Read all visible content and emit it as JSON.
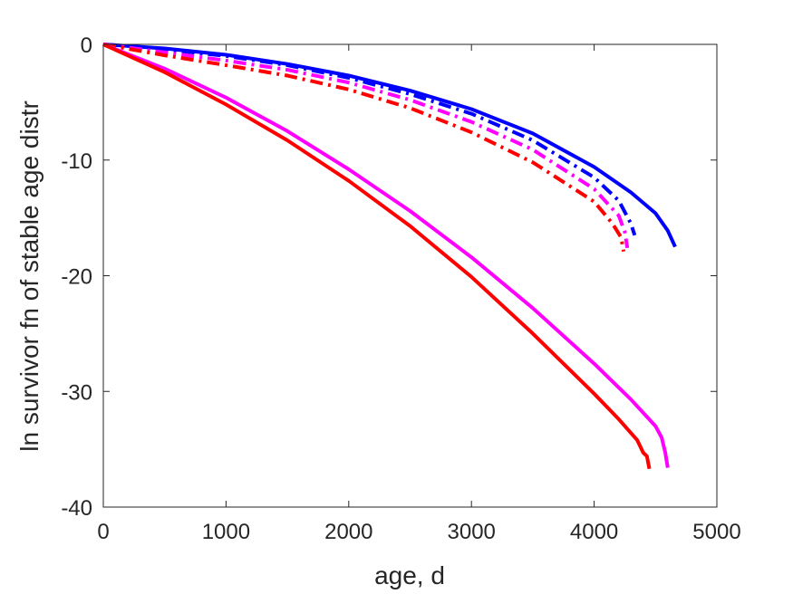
{
  "chart_data": {
    "type": "line",
    "title": "",
    "xlabel": "age, d",
    "ylabel": "ln survivor fn of stable age distr",
    "xlim": [
      0,
      5000
    ],
    "ylim": [
      -40,
      0
    ],
    "xticks": [
      0,
      1000,
      2000,
      3000,
      4000,
      5000
    ],
    "xtick_labels": [
      "0",
      "1000",
      "2000",
      "3000",
      "4000",
      "5000"
    ],
    "yticks": [
      0,
      -10,
      -20,
      -30,
      -40
    ],
    "ytick_labels": [
      "0",
      "-10",
      "-20",
      "-30",
      "-40"
    ],
    "grid": false,
    "series": [
      {
        "color": "#0000ff",
        "style": "solid",
        "x": [
          0,
          500,
          1000,
          1500,
          2000,
          2500,
          3000,
          3500,
          4000,
          4300,
          4500,
          4600,
          4660
        ],
        "y": [
          0,
          -0.35,
          -0.9,
          -1.7,
          -2.7,
          -4.0,
          -5.6,
          -7.7,
          -10.6,
          -12.8,
          -14.6,
          -16.1,
          -17.5
        ]
      },
      {
        "color": "#0000ff",
        "style": "dashdot",
        "x": [
          0,
          500,
          1000,
          1500,
          2000,
          2500,
          3000,
          3500,
          4000,
          4200,
          4300,
          4330
        ],
        "y": [
          0,
          -0.45,
          -1.0,
          -1.8,
          -2.9,
          -4.3,
          -6.0,
          -8.3,
          -11.5,
          -13.5,
          -15.5,
          -16.5
        ]
      },
      {
        "color": "#ff00ff",
        "style": "dashdot",
        "x": [
          0,
          500,
          1000,
          1500,
          2000,
          2500,
          3000,
          3500,
          4000,
          4200,
          4250,
          4270
        ],
        "y": [
          0,
          -0.7,
          -1.4,
          -2.2,
          -3.3,
          -4.8,
          -6.7,
          -9.1,
          -12.5,
          -14.8,
          -16.2,
          -17.6
        ]
      },
      {
        "color": "#ff0000",
        "style": "dashdot",
        "x": [
          0,
          500,
          1000,
          1500,
          2000,
          2500,
          3000,
          3500,
          4000,
          4150,
          4220,
          4240
        ],
        "y": [
          0,
          -0.95,
          -1.8,
          -2.7,
          -3.9,
          -5.5,
          -7.6,
          -10.2,
          -13.6,
          -15.5,
          -16.7,
          -17.9
        ]
      },
      {
        "color": "#ff00ff",
        "style": "solid",
        "x": [
          0,
          500,
          1000,
          1500,
          2000,
          2500,
          3000,
          3500,
          4000,
          4300,
          4500,
          4550,
          4580,
          4600
        ],
        "y": [
          0,
          -2.1,
          -4.6,
          -7.5,
          -10.8,
          -14.4,
          -18.4,
          -22.8,
          -27.6,
          -30.7,
          -33.0,
          -34.0,
          -35.3,
          -36.6
        ]
      },
      {
        "color": "#ff0000",
        "style": "solid",
        "x": [
          0,
          500,
          1000,
          1500,
          2000,
          2500,
          3000,
          3500,
          4000,
          4200,
          4350,
          4400,
          4430,
          4450
        ],
        "y": [
          0,
          -2.4,
          -5.2,
          -8.3,
          -11.8,
          -15.7,
          -20.1,
          -25.0,
          -30.2,
          -32.4,
          -34.2,
          -35.3,
          -35.6,
          -36.7
        ]
      }
    ]
  }
}
